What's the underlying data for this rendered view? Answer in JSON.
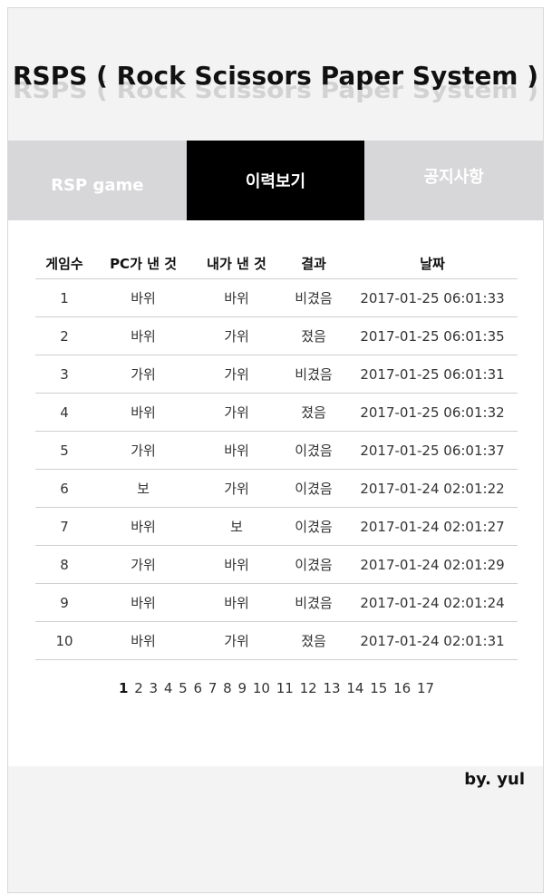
{
  "header": {
    "title": "RSPS ( Rock Scissors Paper System )"
  },
  "nav": {
    "tabs": [
      {
        "label": "RSP game",
        "active": false
      },
      {
        "label": "이력보기",
        "active": true
      },
      {
        "label": "공지사항",
        "active": false
      }
    ]
  },
  "history": {
    "columns": [
      "게임수",
      "PC가 낸 것",
      "내가 낸 것",
      "결과",
      "날짜"
    ],
    "rows": [
      [
        "1",
        "바위",
        "바위",
        "비겼음",
        "2017-01-25 06:01:33"
      ],
      [
        "2",
        "바위",
        "가위",
        "졌음",
        "2017-01-25 06:01:35"
      ],
      [
        "3",
        "가위",
        "가위",
        "비겼음",
        "2017-01-25 06:01:31"
      ],
      [
        "4",
        "바위",
        "가위",
        "졌음",
        "2017-01-25 06:01:32"
      ],
      [
        "5",
        "가위",
        "바위",
        "이겼음",
        "2017-01-25 06:01:37"
      ],
      [
        "6",
        "보",
        "가위",
        "이겼음",
        "2017-01-24 02:01:22"
      ],
      [
        "7",
        "바위",
        "보",
        "이겼음",
        "2017-01-24 02:01:27"
      ],
      [
        "8",
        "가위",
        "바위",
        "이겼음",
        "2017-01-24 02:01:29"
      ],
      [
        "9",
        "바위",
        "바위",
        "비겼음",
        "2017-01-24 02:01:24"
      ],
      [
        "10",
        "바위",
        "가위",
        "졌음",
        "2017-01-24 02:01:31"
      ]
    ]
  },
  "pagination": {
    "current": "1",
    "pages": [
      "1",
      "2",
      "3",
      "4",
      "5",
      "6",
      "7",
      "8",
      "9",
      "10",
      "11",
      "12",
      "13",
      "14",
      "15",
      "16",
      "17"
    ]
  },
  "footer": {
    "byline": "by. yul"
  }
}
